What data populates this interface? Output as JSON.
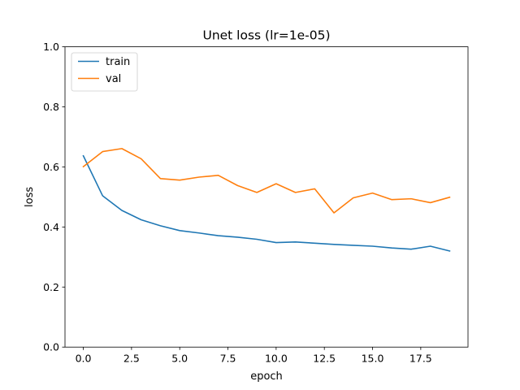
{
  "chart_data": {
    "type": "line",
    "title": "Unet loss (lr=1e-05)",
    "xlabel": "epoch",
    "ylabel": "loss",
    "xlim": [
      -0.95,
      19.95
    ],
    "ylim": [
      0.0,
      1.0
    ],
    "x_ticks": [
      0.0,
      2.5,
      5.0,
      7.5,
      10.0,
      12.5,
      15.0,
      17.5
    ],
    "x_tick_labels": [
      "0.0",
      "2.5",
      "5.0",
      "7.5",
      "10.0",
      "12.5",
      "15.0",
      "17.5"
    ],
    "y_ticks": [
      0.0,
      0.2,
      0.4,
      0.6,
      0.8,
      1.0
    ],
    "y_tick_labels": [
      "0.0",
      "0.2",
      "0.4",
      "0.6",
      "0.8",
      "1.0"
    ],
    "grid": false,
    "legend_position": "upper left",
    "x": [
      0,
      1,
      2,
      3,
      4,
      5,
      6,
      7,
      8,
      9,
      10,
      11,
      12,
      13,
      14,
      15,
      16,
      17,
      18,
      19
    ],
    "series": [
      {
        "name": "train",
        "color": "#1f77b4",
        "values": [
          0.637,
          0.504,
          0.455,
          0.424,
          0.404,
          0.388,
          0.38,
          0.371,
          0.366,
          0.359,
          0.348,
          0.35,
          0.346,
          0.342,
          0.339,
          0.336,
          0.33,
          0.326,
          0.336,
          0.32
        ]
      },
      {
        "name": "val",
        "color": "#ff7f0e",
        "values": [
          0.601,
          0.651,
          0.661,
          0.627,
          0.561,
          0.556,
          0.566,
          0.572,
          0.538,
          0.515,
          0.544,
          0.515,
          0.527,
          0.447,
          0.497,
          0.513,
          0.491,
          0.494,
          0.481,
          0.499
        ]
      }
    ]
  }
}
